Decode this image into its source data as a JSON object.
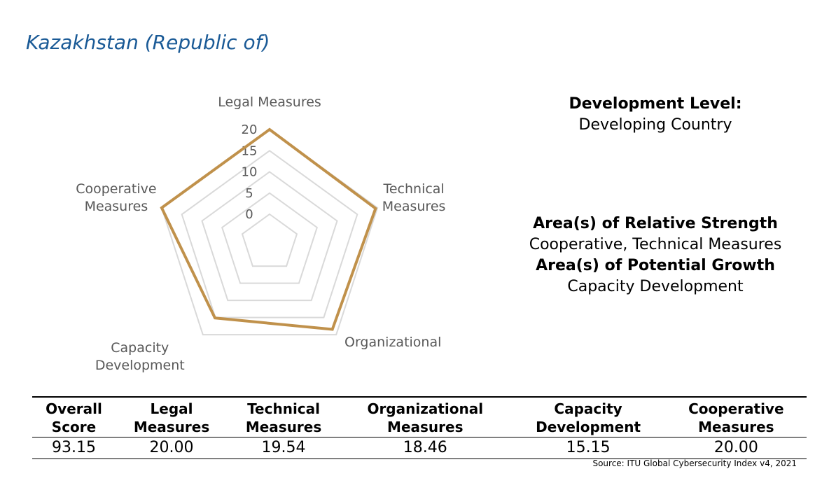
{
  "country": "Kazakhstan (Republic of)",
  "chart_data": {
    "type": "radar",
    "axes": [
      "Legal Measures",
      "Technical Measures",
      "Organizational",
      "Capacity Development",
      "Cooperative Measures"
    ],
    "axis_label_lines": [
      [
        "Legal Measures"
      ],
      [
        "Technical",
        "Measures"
      ],
      [
        "Organizational"
      ],
      [
        "Capacity",
        "Development"
      ],
      [
        "Cooperative",
        "Measures"
      ]
    ],
    "ticks": [
      "0",
      "5",
      "10",
      "15",
      "20"
    ],
    "range": [
      0,
      20
    ],
    "series": [
      {
        "values": [
          20.0,
          19.54,
          18.46,
          15.15,
          20.0
        ],
        "color": "#c0914b"
      }
    ],
    "grid_color": "#d9d9d9"
  },
  "development": {
    "heading": "Development Level:",
    "value": "Developing Country"
  },
  "strength": {
    "strength_heading": "Area(s) of Relative Strength",
    "strength_value": "Cooperative, Technical Measures",
    "growth_heading": "Area(s) of Potential Growth",
    "growth_value": "Capacity Development"
  },
  "table": {
    "headers": [
      [
        "Overall",
        "Score"
      ],
      [
        "Legal",
        "Measures"
      ],
      [
        "Technical",
        "Measures"
      ],
      [
        "Organizational",
        "Measures"
      ],
      [
        "Capacity",
        "Development"
      ],
      [
        "Cooperative",
        "Measures"
      ]
    ],
    "values": [
      "93.15",
      "20.00",
      "19.54",
      "18.46",
      "15.15",
      "20.00"
    ]
  },
  "source": "Source: ITU Global Cybersecurity Index v4, 2021"
}
